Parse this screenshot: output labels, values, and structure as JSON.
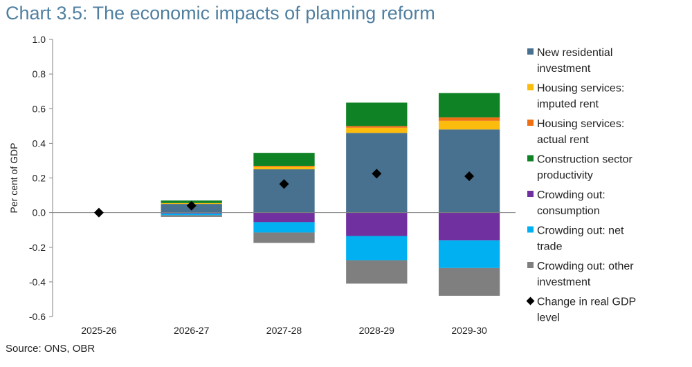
{
  "title": "Chart 3.5: The economic impacts of planning reform",
  "source": "Source: ONS, OBR",
  "chart_data": {
    "type": "bar",
    "stacked": true,
    "title": "Chart 3.5: The economic impacts of planning reform",
    "xlabel": "",
    "ylabel": "Per cent of GDP",
    "ylim": [
      -0.6,
      1.0
    ],
    "yticks": [
      -0.6,
      -0.4,
      -0.2,
      0.0,
      0.2,
      0.4,
      0.6,
      0.8,
      1.0
    ],
    "ytick_labels": [
      "-0.6",
      "-0.4",
      "-0.2",
      "0.0",
      "0.2",
      "0.4",
      "0.6",
      "0.8",
      "1.0"
    ],
    "grid": true,
    "legend_position": "right",
    "categories": [
      "2025-26",
      "2026-27",
      "2027-28",
      "2028-29",
      "2029-30"
    ],
    "series": [
      {
        "name": "New residential investment",
        "color": "#48708f",
        "values": [
          0.0,
          0.05,
          0.25,
          0.46,
          0.48
        ]
      },
      {
        "name": "Housing services: imputed rent",
        "color": "#fbbc0d",
        "values": [
          0.0,
          0.005,
          0.015,
          0.03,
          0.05
        ]
      },
      {
        "name": "Housing services: actual rent",
        "color": "#ee7013",
        "values": [
          0.0,
          0.0,
          0.005,
          0.01,
          0.02
        ]
      },
      {
        "name": "Construction sector productivity",
        "color": "#0f8225",
        "values": [
          0.0,
          0.015,
          0.075,
          0.135,
          0.14
        ]
      },
      {
        "name": "Crowding out: consumption",
        "color": "#7030a0",
        "values": [
          0.0,
          -0.005,
          -0.055,
          -0.135,
          -0.16
        ]
      },
      {
        "name": "Crowding out: net trade",
        "color": "#00b0f0",
        "values": [
          0.0,
          -0.01,
          -0.06,
          -0.14,
          -0.16
        ]
      },
      {
        "name": "Crowding out: other investment",
        "color": "#7f7f7f",
        "values": [
          0.0,
          -0.01,
          -0.06,
          -0.135,
          -0.16
        ]
      }
    ],
    "markers": {
      "name": "Change in real GDP level",
      "color": "#000000",
      "values": [
        0.0,
        0.04,
        0.165,
        0.225,
        0.21
      ]
    }
  }
}
